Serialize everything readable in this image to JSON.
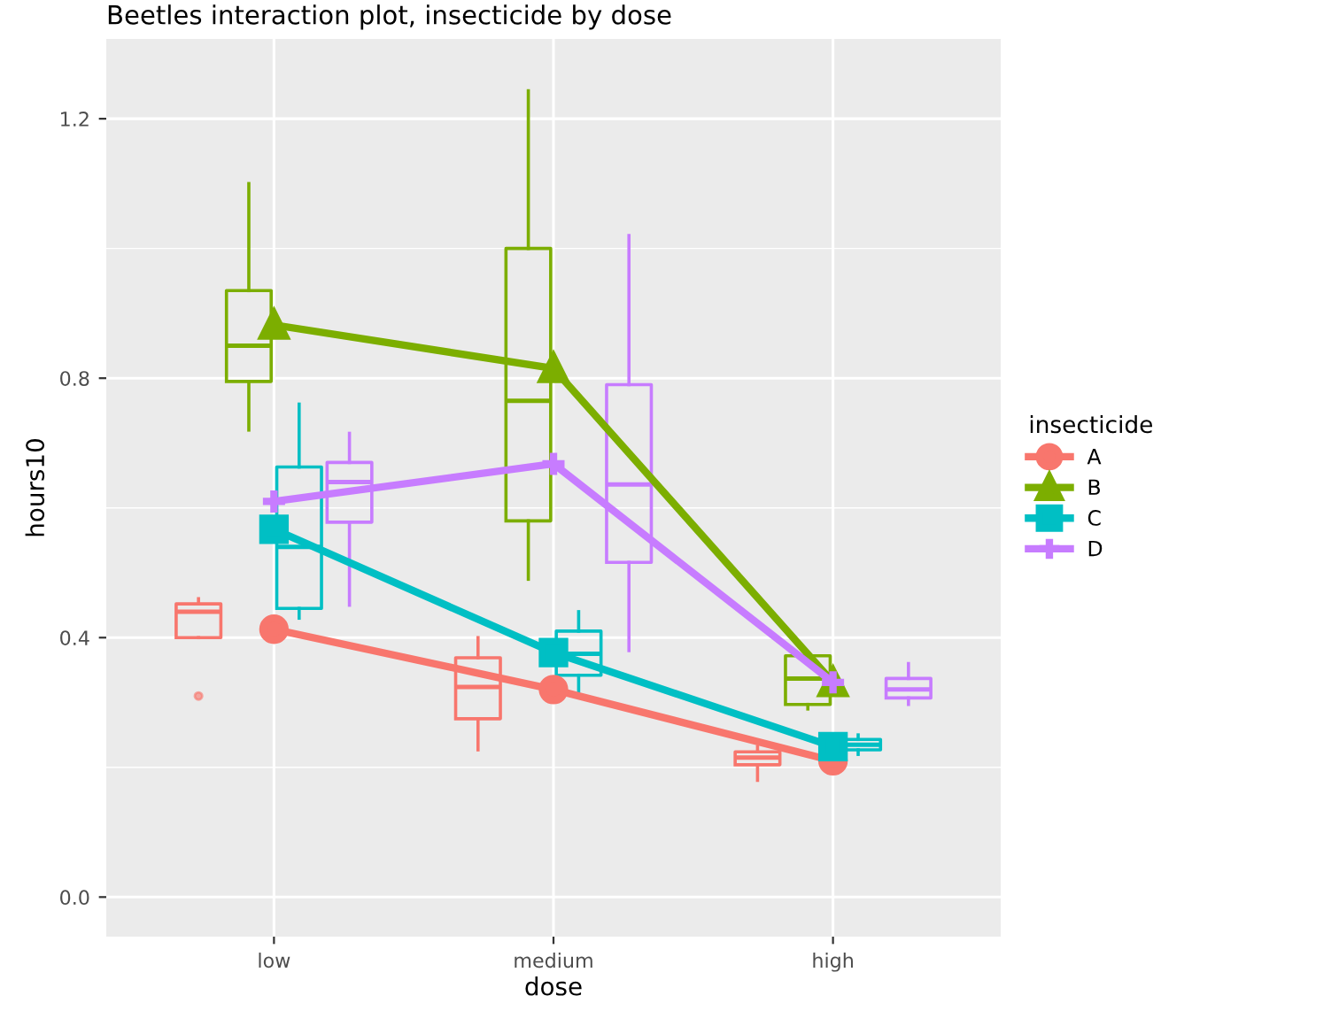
{
  "chart_data": {
    "type": "box",
    "title": "Beetles interaction plot, insecticide by dose",
    "xlabel": "dose",
    "ylabel": "hours10",
    "legend_title": "insecticide",
    "legend": "right",
    "grid": true,
    "categories": [
      "low",
      "medium",
      "high"
    ],
    "ylim": [
      -0.061,
      1.323
    ],
    "yticks": [
      {
        "value": 0.0,
        "label": "0.0"
      },
      {
        "value": 0.2,
        "label": null
      },
      {
        "value": 0.4,
        "label": "0.4"
      },
      {
        "value": 0.6,
        "label": null
      },
      {
        "value": 0.8,
        "label": "0.8"
      },
      {
        "value": 1.0,
        "label": null
      },
      {
        "value": 1.2,
        "label": "1.2"
      }
    ],
    "series": [
      {
        "color": "#f8766d",
        "boxes": [
          {
            "low": 0.4,
            "q1": 0.4,
            "median": 0.44,
            "q3": 0.452,
            "high": 0.46,
            "outliers": [
              0.31
            ]
          },
          {
            "low": 0.227,
            "q1": 0.275,
            "median": 0.324,
            "q3": 0.369,
            "high": 0.4
          },
          {
            "low": 0.18,
            "q1": 0.204,
            "median": 0.215,
            "q3": 0.224,
            "high": 0.232
          }
        ]
      },
      {
        "color": "#7cae00",
        "boxes": [
          {
            "low": 0.72,
            "q1": 0.795,
            "median": 0.85,
            "q3": 0.935,
            "high": 1.1
          },
          {
            "low": 0.49,
            "q1": 0.58,
            "median": 0.765,
            "q3": 1.0,
            "high": 1.243
          },
          {
            "low": 0.29,
            "q1": 0.297,
            "median": 0.337,
            "q3": 0.372,
            "high": 0.372
          }
        ]
      },
      {
        "color": "#00bfc4",
        "boxes": [
          {
            "low": 0.43,
            "q1": 0.445,
            "median": 0.54,
            "q3": 0.663,
            "high": 0.76
          },
          {
            "low": 0.313,
            "q1": 0.342,
            "median": 0.375,
            "q3": 0.41,
            "high": 0.44
          },
          {
            "low": 0.22,
            "q1": 0.227,
            "median": 0.235,
            "q3": 0.243,
            "high": 0.25
          }
        ]
      },
      {
        "color": "#c77cff",
        "boxes": [
          {
            "low": 0.45,
            "q1": 0.578,
            "median": 0.64,
            "q3": 0.67,
            "high": 0.715
          },
          {
            "low": 0.38,
            "q1": 0.516,
            "median": 0.636,
            "q3": 0.79,
            "high": 1.02
          },
          {
            "low": 0.297,
            "q1": 0.307,
            "median": 0.32,
            "q3": 0.337,
            "high": 0.36
          }
        ]
      },
      {
        "type": "line",
        "name": "A",
        "color": "#f8766d",
        "marker": "circle",
        "values": [
          0.413,
          0.32,
          0.21
        ]
      },
      {
        "type": "line",
        "name": "B",
        "color": "#7cae00",
        "marker": "triangle",
        "values": [
          0.882,
          0.815,
          0.331
        ]
      },
      {
        "type": "line",
        "name": "C",
        "color": "#00bfc4",
        "marker": "square",
        "values": [
          0.567,
          0.377,
          0.232
        ]
      },
      {
        "type": "line",
        "name": "D",
        "color": "#c77cff",
        "marker": "cross",
        "values": [
          0.61,
          0.668,
          0.331
        ]
      }
    ]
  }
}
